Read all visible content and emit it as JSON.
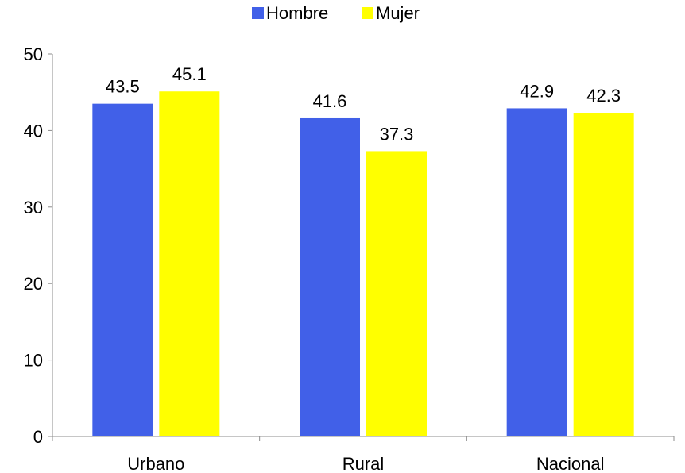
{
  "chart_data": {
    "type": "bar",
    "categories": [
      "Urbano",
      "Rural",
      "Nacional"
    ],
    "series": [
      {
        "name": "Hombre",
        "values": [
          43.5,
          41.6,
          42.9
        ],
        "color": "#4160E8"
      },
      {
        "name": "Mujer",
        "values": [
          45.1,
          37.3,
          42.3
        ],
        "color": "#FFFF00"
      }
    ],
    "yticks": [
      0,
      10,
      20,
      30,
      40,
      50
    ],
    "ylim": [
      0,
      50
    ],
    "title": "",
    "xlabel": "",
    "ylabel": "",
    "grid": false,
    "legend_position": "top-center"
  }
}
